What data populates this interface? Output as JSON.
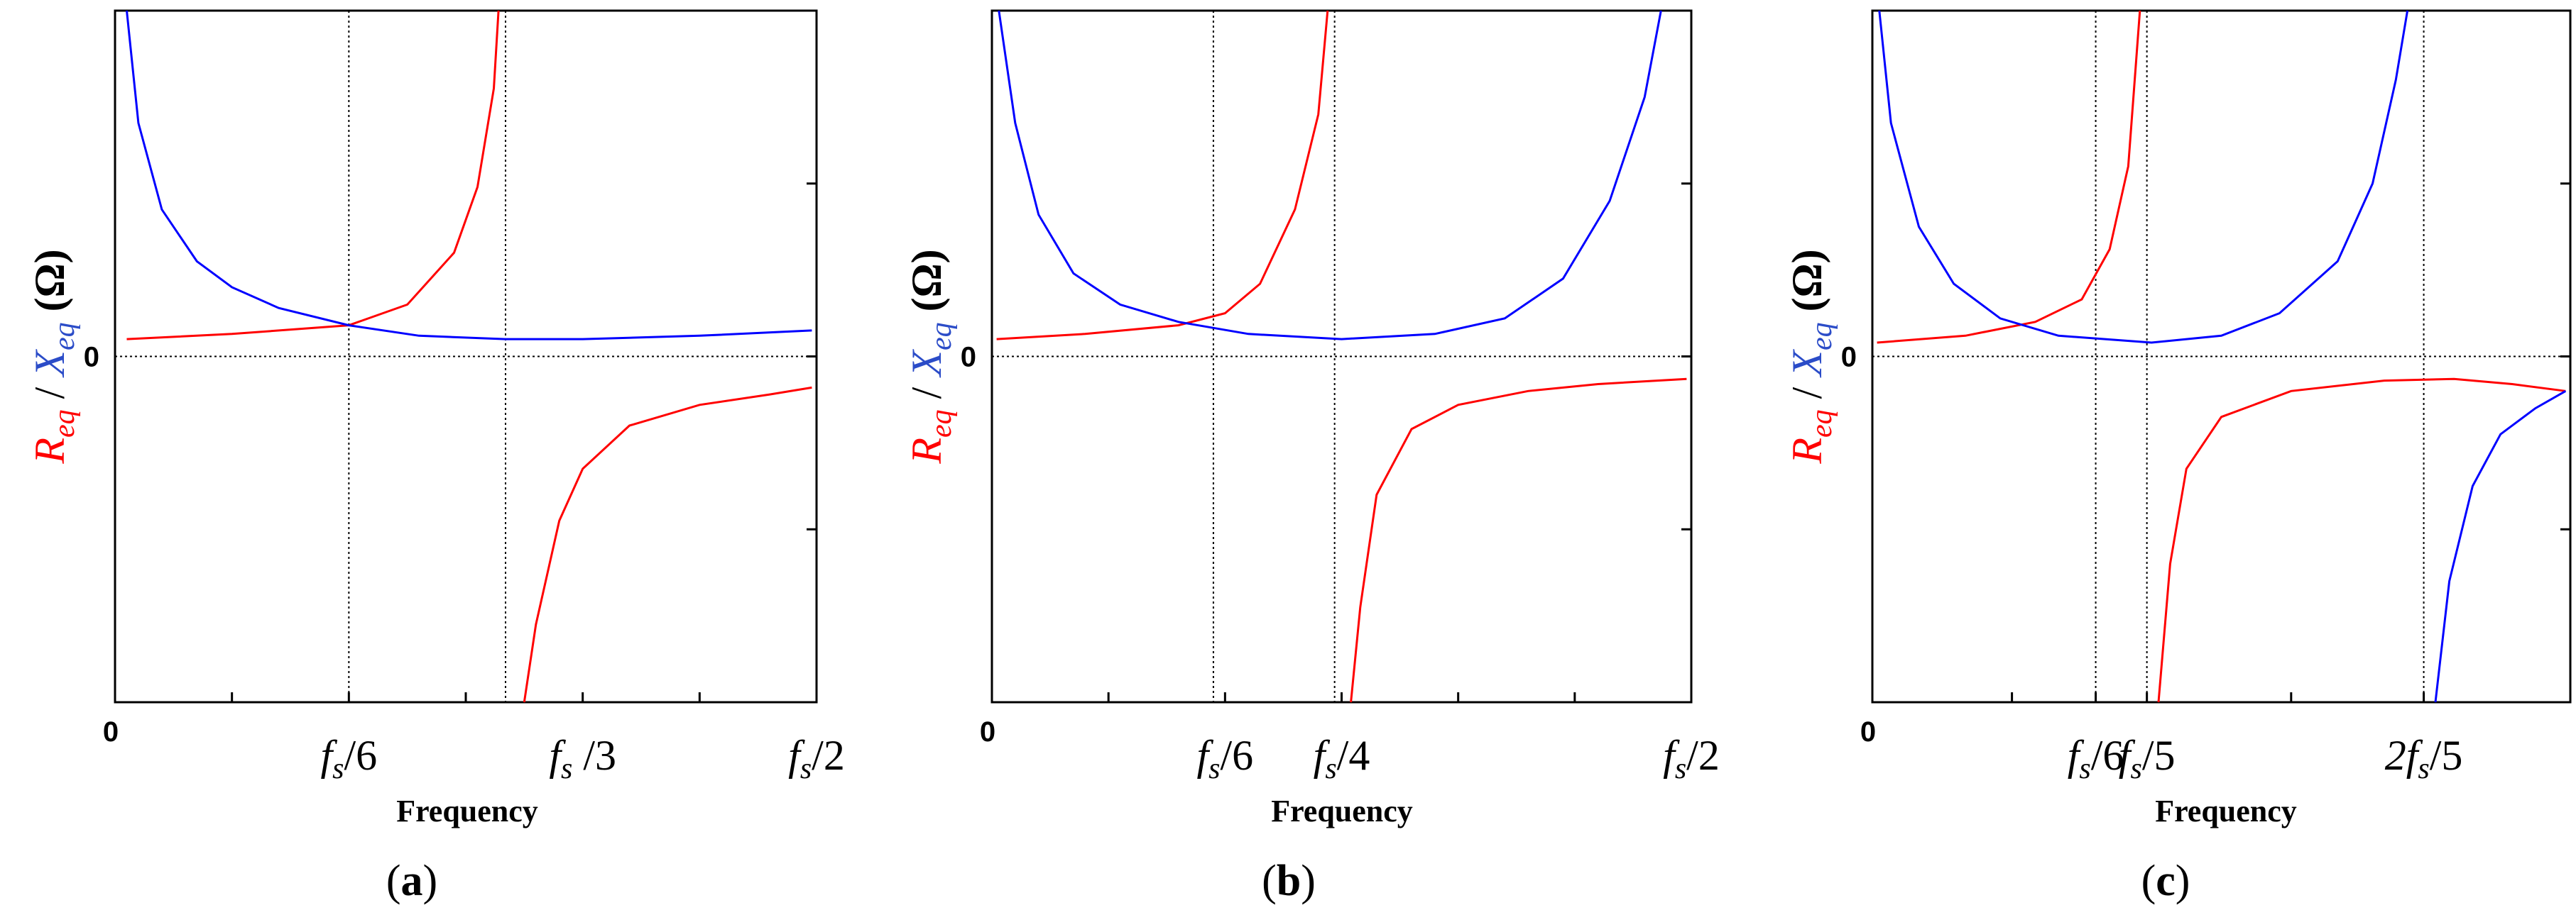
{
  "chart_data": [
    {
      "panel": "a",
      "type": "line",
      "xlabel": "Frequency",
      "ylabel": {
        "r": "R",
        "r_sub": "eq",
        "sep": " / ",
        "x": "X",
        "x_sub": "eq",
        "unit": " (Ω)"
      },
      "xlim": [
        0,
        3
      ],
      "ylim": [
        -2,
        2
      ],
      "y_zero_label": "0",
      "x_ticks": [
        {
          "value": 0,
          "label": "0",
          "parts": []
        },
        {
          "value": 1,
          "label": "fs/6",
          "parts": [
            [
              "f",
              "s",
              "/6"
            ]
          ]
        },
        {
          "value": 2,
          "label": "fs/3",
          "parts": [
            [
              "f",
              "s",
              " /3"
            ]
          ]
        },
        {
          "value": 3,
          "label": "fs/2",
          "parts": [
            [
              "f",
              "s",
              "/2"
            ]
          ]
        }
      ],
      "minor_x_ticks": [
        0.5,
        1.5,
        2.5
      ],
      "y_ticks": [
        -1,
        0,
        1
      ],
      "vlines": [
        1,
        1.67
      ],
      "series": [
        {
          "name": "Req",
          "color": "#ff0000",
          "values": [
            [
              0.05,
              0.1
            ],
            [
              0.5,
              0.13
            ],
            [
              1.0,
              0.18
            ],
            [
              1.25,
              0.3
            ],
            [
              1.45,
              0.6
            ],
            [
              1.55,
              0.98
            ],
            [
              1.62,
              1.55
            ],
            [
              1.64,
              2.0
            ],
            [
              null,
              null
            ],
            [
              1.75,
              -2.0
            ],
            [
              1.8,
              -1.55
            ],
            [
              1.9,
              -0.95
            ],
            [
              2.0,
              -0.65
            ],
            [
              2.2,
              -0.4
            ],
            [
              2.5,
              -0.28
            ],
            [
              2.8,
              -0.22
            ],
            [
              2.98,
              -0.18
            ]
          ]
        },
        {
          "name": "Xeq",
          "color": "#0000ff",
          "values": [
            [
              0.05,
              2.0
            ],
            [
              0.1,
              1.35
            ],
            [
              0.2,
              0.85
            ],
            [
              0.35,
              0.55
            ],
            [
              0.5,
              0.4
            ],
            [
              0.7,
              0.28
            ],
            [
              1.0,
              0.18
            ],
            [
              1.3,
              0.12
            ],
            [
              1.67,
              0.1
            ],
            [
              2.0,
              0.1
            ],
            [
              2.5,
              0.12
            ],
            [
              2.98,
              0.15
            ]
          ]
        }
      ]
    },
    {
      "panel": "b",
      "type": "line",
      "xlabel": "Frequency",
      "ylabel": {
        "r": "R",
        "r_sub": "eq",
        "sep": " / ",
        "x": "X",
        "x_sub": "eq",
        "unit": " (Ω)"
      },
      "xlim": [
        0,
        3
      ],
      "ylim": [
        -2,
        2
      ],
      "y_zero_label": "0",
      "x_ticks": [
        {
          "value": 0,
          "label": "0",
          "parts": []
        },
        {
          "value": 1,
          "label": "fs/6",
          "parts": [
            [
              "f",
              "s",
              "/6"
            ]
          ]
        },
        {
          "value": 1.5,
          "label": "fs/4",
          "parts": [
            [
              "f",
              "s",
              "/4"
            ]
          ]
        },
        {
          "value": 3,
          "label": "fs/2",
          "parts": [
            [
              "f",
              "s",
              "/2"
            ]
          ]
        }
      ],
      "minor_x_ticks": [
        0.5,
        2.0,
        2.5
      ],
      "y_ticks": [
        -1,
        0,
        1
      ],
      "vlines": [
        0.95,
        1.47
      ],
      "series": [
        {
          "name": "Req",
          "color": "#ff0000",
          "values": [
            [
              0.02,
              0.1
            ],
            [
              0.4,
              0.13
            ],
            [
              0.8,
              0.18
            ],
            [
              1.0,
              0.25
            ],
            [
              1.15,
              0.42
            ],
            [
              1.3,
              0.85
            ],
            [
              1.4,
              1.4
            ],
            [
              1.44,
              2.0
            ],
            [
              null,
              null
            ],
            [
              1.54,
              -2.0
            ],
            [
              1.58,
              -1.45
            ],
            [
              1.65,
              -0.8
            ],
            [
              1.8,
              -0.42
            ],
            [
              2.0,
              -0.28
            ],
            [
              2.3,
              -0.2
            ],
            [
              2.6,
              -0.16
            ],
            [
              2.98,
              -0.13
            ]
          ]
        },
        {
          "name": "Xeq",
          "color": "#0000ff",
          "values": [
            [
              0.03,
              2.0
            ],
            [
              0.1,
              1.35
            ],
            [
              0.2,
              0.82
            ],
            [
              0.35,
              0.48
            ],
            [
              0.55,
              0.3
            ],
            [
              0.8,
              0.2
            ],
            [
              1.1,
              0.13
            ],
            [
              1.5,
              0.1
            ],
            [
              1.9,
              0.13
            ],
            [
              2.2,
              0.22
            ],
            [
              2.45,
              0.45
            ],
            [
              2.65,
              0.9
            ],
            [
              2.8,
              1.5
            ],
            [
              2.87,
              2.0
            ]
          ]
        }
      ]
    },
    {
      "panel": "c",
      "type": "line",
      "xlabel": "Frequency",
      "ylabel": {
        "r": "R",
        "r_sub": "eq",
        "sep": " / ",
        "x": "X",
        "x_sub": "eq",
        "unit": " (Ω)"
      },
      "xlim": [
        0,
        3
      ],
      "ylim": [
        -2,
        2
      ],
      "y_zero_label": "0",
      "x_ticks": [
        {
          "value": 0,
          "label": "0",
          "parts": []
        },
        {
          "value": 0.96,
          "label": "fs/6",
          "parts": [
            [
              "f",
              "s",
              "/6"
            ]
          ]
        },
        {
          "value": 1.18,
          "label": "fs/5",
          "parts": [
            [
              "f",
              "s",
              "/5"
            ]
          ]
        },
        {
          "value": 2.37,
          "label": "2fs/5",
          "parts": [
            [
              "2f",
              "s",
              "/5"
            ]
          ]
        }
      ],
      "minor_x_ticks": [
        0.6,
        1.8
      ],
      "y_ticks": [
        -1,
        0,
        1
      ],
      "vlines": [
        0.96,
        1.18,
        2.37
      ],
      "series": [
        {
          "name": "Req",
          "color": "#ff0000",
          "values": [
            [
              0.02,
              0.08
            ],
            [
              0.4,
              0.12
            ],
            [
              0.7,
              0.2
            ],
            [
              0.9,
              0.33
            ],
            [
              1.02,
              0.62
            ],
            [
              1.1,
              1.1
            ],
            [
              1.15,
              2.0
            ],
            [
              null,
              null
            ],
            [
              1.23,
              -2.0
            ],
            [
              1.28,
              -1.2
            ],
            [
              1.35,
              -0.65
            ],
            [
              1.5,
              -0.35
            ],
            [
              1.8,
              -0.2
            ],
            [
              2.2,
              -0.14
            ],
            [
              2.5,
              -0.13
            ],
            [
              2.75,
              -0.16
            ],
            [
              2.98,
              -0.2
            ]
          ]
        },
        {
          "name": "Xeq",
          "color": "#0000ff",
          "values": [
            [
              0.03,
              2.0
            ],
            [
              0.08,
              1.35
            ],
            [
              0.2,
              0.75
            ],
            [
              0.35,
              0.42
            ],
            [
              0.55,
              0.22
            ],
            [
              0.8,
              0.12
            ],
            [
              1.2,
              0.08
            ],
            [
              1.5,
              0.12
            ],
            [
              1.75,
              0.25
            ],
            [
              2.0,
              0.55
            ],
            [
              2.15,
              1.0
            ],
            [
              2.25,
              1.6
            ],
            [
              2.3,
              2.0
            ],
            [
              null,
              null
            ],
            [
              2.42,
              -2.0
            ],
            [
              2.48,
              -1.3
            ],
            [
              2.58,
              -0.75
            ],
            [
              2.7,
              -0.45
            ],
            [
              2.85,
              -0.3
            ],
            [
              2.98,
              -0.2
            ]
          ]
        }
      ]
    }
  ]
}
